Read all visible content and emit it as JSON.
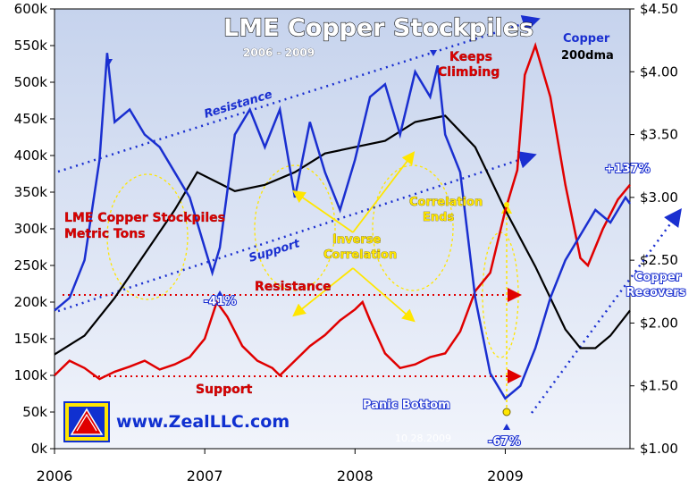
{
  "chart_data": {
    "type": "line",
    "title": "LME Copper Stockpiles",
    "subtitle": "2006 - 2009",
    "x_ticks": [
      "2006",
      "2007",
      "2008",
      "2009"
    ],
    "x_range": [
      2006.0,
      2009.83
    ],
    "y_left": {
      "range": [
        0,
        600000
      ],
      "tick_labels": [
        "0k",
        "50k",
        "100k",
        "150k",
        "200k",
        "250k",
        "300k",
        "350k",
        "400k",
        "450k",
        "500k",
        "550k",
        "600k"
      ]
    },
    "y_right": {
      "range": [
        1.0,
        4.5
      ],
      "tick_labels": [
        "$1.00",
        "$1.50",
        "$2.00",
        "$2.50",
        "$3.00",
        "$3.50",
        "$4.00",
        "$4.50"
      ]
    },
    "grid": false,
    "series": [
      {
        "name": "LME Copper Stockpiles Metric Tons",
        "axis": "left",
        "color": "#e00000",
        "x": [
          2006.0,
          2006.1,
          2006.2,
          2006.3,
          2006.4,
          2006.5,
          2006.6,
          2006.7,
          2006.8,
          2006.9,
          2007.0,
          2007.08,
          2007.15,
          2007.25,
          2007.35,
          2007.45,
          2007.5,
          2007.6,
          2007.7,
          2007.8,
          2007.9,
          2008.0,
          2008.05,
          2008.1,
          2008.2,
          2008.3,
          2008.4,
          2008.5,
          2008.6,
          2008.7,
          2008.8,
          2008.9,
          2009.0,
          2009.08,
          2009.13,
          2009.2,
          2009.3,
          2009.4,
          2009.5,
          2009.55,
          2009.65,
          2009.75,
          2009.83
        ],
        "values": [
          100000,
          120000,
          110000,
          95000,
          105000,
          112000,
          120000,
          108000,
          115000,
          125000,
          150000,
          200000,
          180000,
          140000,
          120000,
          110000,
          100000,
          120000,
          140000,
          155000,
          175000,
          190000,
          200000,
          175000,
          130000,
          110000,
          115000,
          125000,
          130000,
          160000,
          215000,
          240000,
          325000,
          380000,
          510000,
          550000,
          480000,
          360000,
          260000,
          250000,
          300000,
          340000,
          360000
        ]
      },
      {
        "name": "Copper",
        "axis": "right",
        "color": "#1a2fd0",
        "x": [
          2006.0,
          2006.1,
          2006.2,
          2006.3,
          2006.35,
          2006.4,
          2006.5,
          2006.6,
          2006.7,
          2006.8,
          2006.9,
          2007.0,
          2007.05,
          2007.1,
          2007.2,
          2007.3,
          2007.4,
          2007.5,
          2007.6,
          2007.7,
          2007.8,
          2007.9,
          2008.0,
          2008.1,
          2008.2,
          2008.3,
          2008.4,
          2008.5,
          2008.55,
          2008.6,
          2008.7,
          2008.8,
          2008.9,
          2009.0,
          2009.1,
          2009.2,
          2009.3,
          2009.4,
          2009.5,
          2009.6,
          2009.7,
          2009.8,
          2009.83
        ],
        "values": [
          2.1,
          2.2,
          2.5,
          3.3,
          4.15,
          3.6,
          3.7,
          3.5,
          3.4,
          3.2,
          3.0,
          2.6,
          2.4,
          2.6,
          3.5,
          3.7,
          3.4,
          3.7,
          3.0,
          3.6,
          3.2,
          2.9,
          3.3,
          3.8,
          3.9,
          3.5,
          4.0,
          3.8,
          4.05,
          3.5,
          3.2,
          2.2,
          1.6,
          1.4,
          1.5,
          1.8,
          2.2,
          2.5,
          2.7,
          2.9,
          2.8,
          3.0,
          2.95
        ]
      },
      {
        "name": "200dma",
        "axis": "right",
        "color": "#000000",
        "x": [
          2006.0,
          2006.2,
          2006.4,
          2006.6,
          2006.8,
          2006.95,
          2007.2,
          2007.4,
          2007.6,
          2007.8,
          2008.0,
          2008.2,
          2008.4,
          2008.6,
          2008.8,
          2009.0,
          2009.2,
          2009.4,
          2009.5,
          2009.6,
          2009.7,
          2009.83
        ],
        "values": [
          1.75,
          1.9,
          2.2,
          2.55,
          2.9,
          3.2,
          3.05,
          3.1,
          3.2,
          3.35,
          3.4,
          3.45,
          3.6,
          3.65,
          3.4,
          2.9,
          2.45,
          1.95,
          1.8,
          1.8,
          1.9,
          2.1
        ]
      }
    ],
    "annotations": [
      {
        "text": "Copper",
        "color": "#1a2fd0"
      },
      {
        "text": "200dma",
        "color": "#000000"
      },
      {
        "text": "Resistance",
        "color": "#1a2fd0"
      },
      {
        "text": "Support",
        "color": "#1a2fd0"
      },
      {
        "text": "Keeps Climbing",
        "color": "#e00000"
      },
      {
        "text": "LME Copper Stockpiles Metric Tons",
        "color": "#e00000"
      },
      {
        "text": "Resistance",
        "color": "#e00000"
      },
      {
        "text": "Support",
        "color": "#e00000"
      },
      {
        "text": "Inverse Correlation",
        "color": "#ffe600"
      },
      {
        "text": "Correlation Ends",
        "color": "#ffe600"
      },
      {
        "text": "-41%",
        "color": "#1a2fd0"
      },
      {
        "text": "Panic Bottom",
        "color": "#1a2fd0"
      },
      {
        "text": "-67%",
        "color": "#1a2fd0"
      },
      {
        "text": "+137%",
        "color": "#1a2fd0"
      },
      {
        "text": "Copper Recovers",
        "color": "#1a2fd0"
      }
    ],
    "colors": {
      "background_top": "#c9d6ee",
      "background_bottom": "#eef2fa"
    }
  },
  "labels": {
    "copper": "Copper",
    "dma": "200dma",
    "resistance_blue": "Resistance",
    "support_blue": "Support",
    "keeps_climbing_1": "Keeps",
    "keeps_climbing_2": "Climbing",
    "lme_label_1": "LME Copper Stockpiles",
    "lme_label_2": "Metric Tons",
    "resistance_red": "Resistance",
    "support_red": "Support",
    "inverse_1": "Inverse",
    "inverse_2": "Correlation",
    "corr_ends_1": "Correlation",
    "corr_ends_2": "Ends",
    "pct_41": "-41%",
    "panic_bottom": "Panic Bottom",
    "pct_67": "-67%",
    "pct_137": "+137%",
    "recovers_1": "Copper",
    "recovers_2": "Recovers",
    "website": "www.ZealLLC.com",
    "date_stamp": "10.28.2009"
  }
}
